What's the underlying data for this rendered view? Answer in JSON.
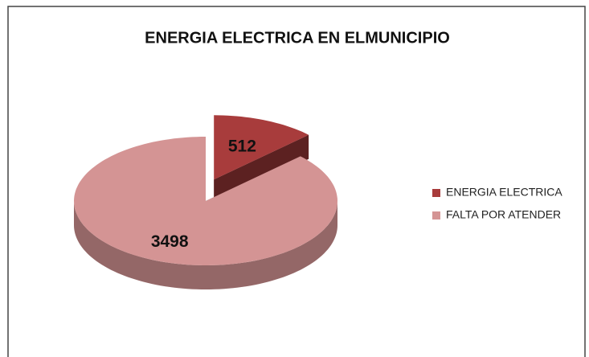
{
  "chart_data": {
    "type": "pie",
    "title": "ENERGIA ELECTRICA  EN ELMUNICIPIO",
    "categories": [
      "ENERGIA ELECTRICA",
      "FALTA POR ATENDER"
    ],
    "values": [
      512,
      3498
    ],
    "colors": [
      "#a83c3c",
      "#d49494"
    ],
    "legend": "right"
  }
}
